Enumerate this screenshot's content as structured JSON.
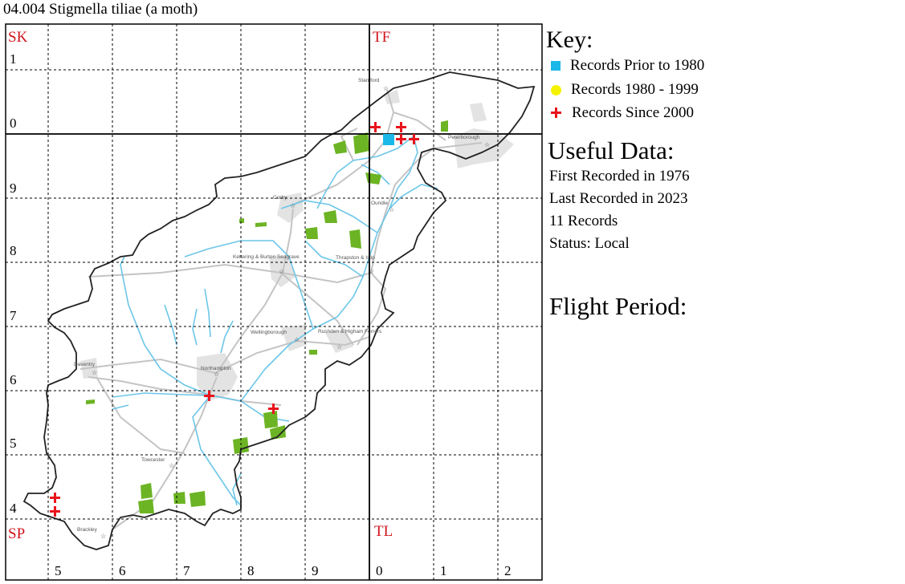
{
  "title": "04.004 Stigmella tiliae (a moth)",
  "grid": {
    "square_labels": [
      "SK",
      "TF",
      "SP",
      "TL"
    ],
    "row_labels": [
      "1",
      "0",
      "9",
      "8",
      "7",
      "6",
      "5",
      "4"
    ],
    "col_labels": [
      "5",
      "6",
      "7",
      "8",
      "9",
      "0",
      "1",
      "2"
    ]
  },
  "towns": [
    "Stamford",
    "Peterborough",
    "Corby",
    "Oundle",
    "Kettering & Burton Seagrave",
    "Thrapston & Islip",
    "Wellingborough",
    "Rushden & Higham Ferrers",
    "Daventry",
    "Northampton",
    "Towcester",
    "Brackley"
  ],
  "records_counts": {
    "prior_1980": 1,
    "since_2000": 10
  },
  "key": {
    "heading": "Key:",
    "prior_1980": "Records Prior to 1980",
    "r1980_1999": "Records 1980 - 1999",
    "since_2000": "Records Since 2000"
  },
  "useful": {
    "heading": "Useful Data:",
    "first": "First Recorded in 1976",
    "last": "Last Recorded in 2023",
    "count": "11 Records",
    "status": "Status: Local"
  },
  "flight": {
    "heading": "Flight Period:"
  },
  "colors": {
    "grid_label": "#d0141c",
    "prior_1980": "#1ab8e8",
    "r1980_1999": "#f5f200",
    "since_2000": "#e8141c",
    "river": "#6cc6e8",
    "road": "#c8c8c8",
    "woodland": "#6cb424",
    "urban": "#e2e2e2",
    "boundary": "#222222"
  }
}
